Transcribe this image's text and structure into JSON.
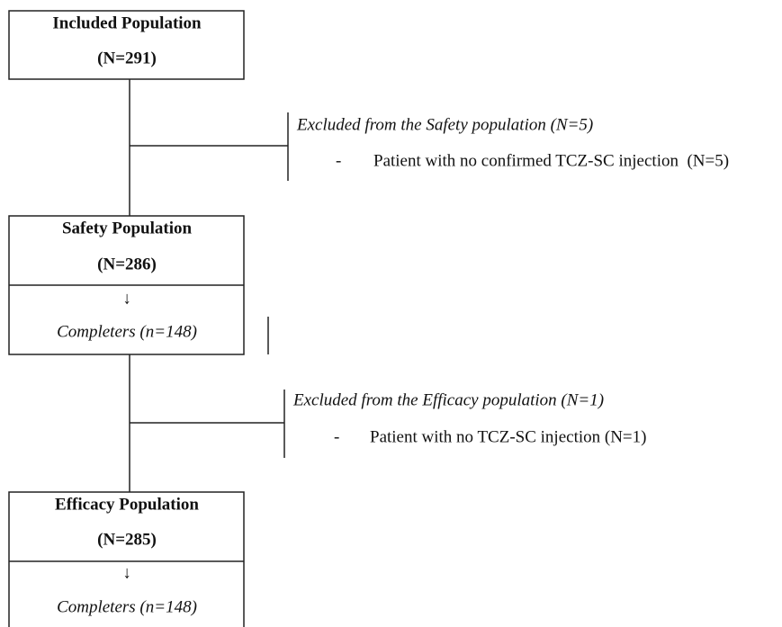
{
  "boxes": [
    {
      "title": "Included Population",
      "count": "(N=291)"
    },
    {
      "title": "Safety Population",
      "count": "(N=286)",
      "arrow": "↓",
      "completers": "Completers (n=148)"
    },
    {
      "title": "Efficacy Population",
      "count": "(N=285)",
      "arrow": "↓",
      "completers": "Completers (n=148)"
    }
  ],
  "exclusions": [
    {
      "title": "Excluded from the Safety population (N=5)",
      "items": [
        {
          "bullet": "-",
          "text": "Patient with no confirmed TCZ-SC injection  (N=5)"
        }
      ]
    },
    {
      "title": "Excluded from the Efficacy population (N=1)",
      "items": [
        {
          "bullet": "-",
          "text": "Patient with no TCZ-SC injection (N=1)"
        }
      ]
    }
  ]
}
